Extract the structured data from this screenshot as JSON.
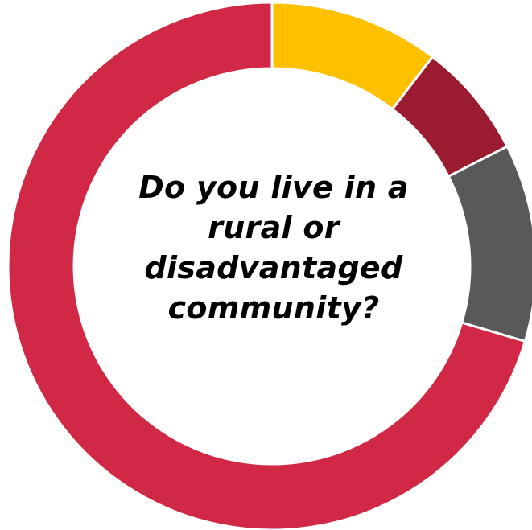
{
  "chart_data": {
    "type": "pie",
    "donut": true,
    "title": "",
    "center_text_lines": [
      "Do you live in a",
      "rural or",
      "disadvantaged",
      "community?"
    ],
    "slices": [
      {
        "value": 10.4,
        "color": "#FFC000"
      },
      {
        "value": 7.1,
        "color": "#9B1B30"
      },
      {
        "value": 12.1,
        "color": "#595959"
      },
      {
        "value": 70.4,
        "color": "#D12945"
      }
    ],
    "start_angle_deg": 0,
    "direction": "clockwise",
    "legend": "none",
    "separator_color": "#ffffff"
  }
}
